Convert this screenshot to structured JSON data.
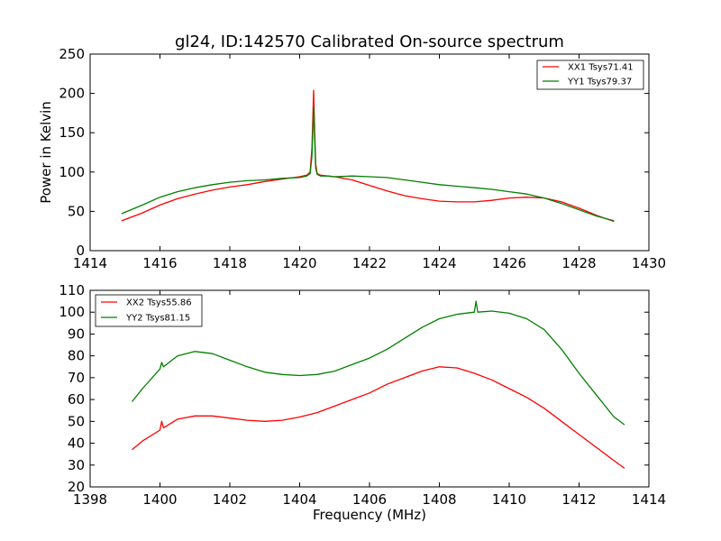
{
  "chart_data": [
    {
      "type": "line",
      "title": "gl24, ID:142570 Calibrated On-source spectrum",
      "xlabel": "",
      "ylabel": "Power in Kelvin",
      "xlim": [
        1414,
        1430
      ],
      "ylim": [
        0,
        250
      ],
      "xticks": [
        1414,
        1416,
        1418,
        1420,
        1422,
        1424,
        1426,
        1428,
        1430
      ],
      "yticks": [
        0,
        50,
        100,
        150,
        200,
        250
      ],
      "legend_position": "top-right",
      "series": [
        {
          "name": "XX1 Tsys71.41",
          "color": "#ff0000",
          "x": [
            1414.9,
            1415.5,
            1416,
            1416.5,
            1417,
            1417.5,
            1418,
            1418.5,
            1419,
            1419.5,
            1420,
            1420.2,
            1420.3,
            1420.35,
            1420.4,
            1420.43,
            1420.46,
            1420.5,
            1420.6,
            1420.8,
            1421,
            1421.5,
            1422,
            1422.5,
            1423,
            1423.5,
            1424,
            1424.5,
            1425,
            1425.5,
            1426,
            1426.5,
            1427,
            1427.5,
            1428,
            1428.5,
            1429
          ],
          "y": [
            38,
            48,
            58,
            66,
            72,
            77,
            81,
            84,
            88,
            91,
            94,
            96,
            100,
            130,
            204,
            150,
            110,
            98,
            96,
            95,
            94,
            90,
            83,
            76,
            70,
            66,
            63,
            62,
            62,
            64,
            67,
            68,
            67,
            62,
            54,
            45,
            37
          ]
        },
        {
          "name": "YY1 Tsys79.37",
          "color": "#008000",
          "x": [
            1414.9,
            1415.5,
            1416,
            1416.5,
            1417,
            1417.5,
            1418,
            1418.5,
            1419,
            1419.5,
            1420,
            1420.2,
            1420.3,
            1420.35,
            1420.4,
            1420.43,
            1420.46,
            1420.5,
            1420.6,
            1420.8,
            1421,
            1421.5,
            1422,
            1422.5,
            1423,
            1423.5,
            1424,
            1424.5,
            1425,
            1425.5,
            1426,
            1426.5,
            1427,
            1427.5,
            1428,
            1428.5,
            1429
          ],
          "y": [
            47,
            58,
            68,
            75,
            80,
            84,
            87,
            89,
            90,
            92,
            93,
            95,
            98,
            120,
            182,
            140,
            105,
            97,
            95,
            95,
            94,
            95,
            94,
            93,
            90,
            87,
            84,
            82,
            80,
            78,
            75,
            72,
            67,
            60,
            52,
            44,
            38
          ]
        }
      ]
    },
    {
      "type": "line",
      "title": "",
      "xlabel": "Frequency (MHz)",
      "ylabel": "",
      "xlim": [
        1398,
        1414
      ],
      "ylim": [
        20,
        110
      ],
      "xticks": [
        1398,
        1400,
        1402,
        1404,
        1406,
        1408,
        1410,
        1412,
        1414
      ],
      "yticks": [
        20,
        30,
        40,
        50,
        60,
        70,
        80,
        90,
        100,
        110
      ],
      "legend_position": "top-left",
      "series": [
        {
          "name": "XX2 Tsys55.86",
          "color": "#ff0000",
          "x": [
            1399.2,
            1399.5,
            1400,
            1400.05,
            1400.1,
            1400.5,
            1401,
            1401.5,
            1402,
            1402.5,
            1403,
            1403.5,
            1404,
            1404.5,
            1405,
            1405.5,
            1406,
            1406.5,
            1407,
            1407.5,
            1408,
            1408.5,
            1409,
            1409.5,
            1410,
            1410.5,
            1411,
            1411.5,
            1412,
            1412.5,
            1413,
            1413.3
          ],
          "y": [
            37,
            41,
            46,
            50,
            47,
            51,
            52.5,
            52.5,
            51.5,
            50.5,
            50,
            50.5,
            52,
            54,
            57,
            60,
            63,
            67,
            70,
            73,
            75,
            74.5,
            72,
            69,
            65,
            61,
            56,
            50,
            44,
            38,
            32,
            28.5
          ]
        },
        {
          "name": "YY2 Tsys81.15",
          "color": "#008000",
          "x": [
            1399.2,
            1399.5,
            1400,
            1400.05,
            1400.1,
            1400.5,
            1401,
            1401.5,
            1402,
            1402.5,
            1403,
            1403.5,
            1404,
            1404.5,
            1405,
            1405.5,
            1406,
            1406.5,
            1407,
            1407.5,
            1408,
            1408.5,
            1409,
            1409.05,
            1409.1,
            1409.5,
            1410,
            1410.5,
            1411,
            1411.5,
            1412,
            1412.5,
            1413,
            1413.3
          ],
          "y": [
            59,
            65,
            74,
            77,
            75,
            80,
            82,
            81,
            78,
            75,
            72.5,
            71.5,
            71,
            71.5,
            73,
            76,
            79,
            83,
            88,
            93,
            97,
            99,
            100,
            105,
            100,
            100.5,
            99.5,
            97,
            92,
            83,
            72,
            62,
            52,
            48.5
          ]
        }
      ]
    }
  ]
}
